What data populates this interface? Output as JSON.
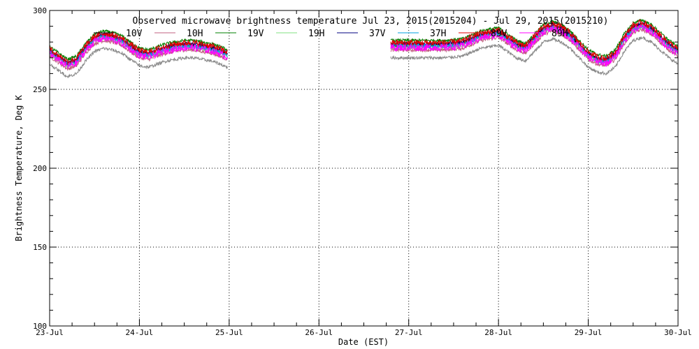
{
  "chart_data": {
    "type": "line",
    "title": "Observed microwave brightness temperature Jul 23, 2015(2015204) - Jul 29, 2015(2015210)",
    "xlabel": "Date (EST)",
    "ylabel": "Brightness Temperature, Deg K",
    "xlim": [
      0,
      7
    ],
    "ylim": [
      100,
      300
    ],
    "x_ticks": [
      {
        "value": 0,
        "label": "23-Jul"
      },
      {
        "value": 1,
        "label": "24-Jul"
      },
      {
        "value": 2,
        "label": "25-Jul"
      },
      {
        "value": 3,
        "label": "26-Jul"
      },
      {
        "value": 4,
        "label": "27-Jul"
      },
      {
        "value": 5,
        "label": "28-Jul"
      },
      {
        "value": 6,
        "label": "29-Jul"
      },
      {
        "value": 7,
        "label": "30-Jul"
      }
    ],
    "y_ticks": [
      {
        "value": 100,
        "label": "100"
      },
      {
        "value": 150,
        "label": "150"
      },
      {
        "value": 200,
        "label": "200"
      },
      {
        "value": 250,
        "label": "250"
      },
      {
        "value": 300,
        "label": "300"
      }
    ],
    "grid": "dotted",
    "legend_position": "top",
    "base_profile": {
      "segment1": {
        "x": [
          0,
          0.1,
          0.2,
          0.3,
          0.4,
          0.5,
          0.6,
          0.7,
          0.8,
          0.9,
          1.0,
          1.1,
          1.2,
          1.3,
          1.4,
          1.5,
          1.6,
          1.7,
          1.8,
          1.9,
          1.98
        ],
        "y": [
          274,
          270,
          266,
          268,
          276,
          282,
          284,
          283,
          281,
          277,
          273,
          272,
          274,
          276,
          277,
          278,
          278,
          277,
          276,
          274,
          272
        ]
      },
      "segment2": {
        "x": [
          3.8,
          4.0,
          4.2,
          4.4,
          4.6,
          4.8,
          5.0,
          5.1,
          5.2,
          5.3,
          5.4,
          5.5,
          5.6,
          5.7,
          5.8,
          5.9,
          6.0,
          6.1,
          6.2,
          6.3,
          6.4,
          6.5,
          6.6,
          6.7,
          6.8,
          6.9,
          7.0
        ],
        "y": [
          278,
          278,
          278,
          278,
          279,
          284,
          286,
          282,
          278,
          276,
          282,
          288,
          290,
          288,
          284,
          278,
          272,
          269,
          268,
          272,
          282,
          289,
          291,
          288,
          283,
          278,
          274
        ]
      }
    },
    "series": [
      {
        "name": "10V",
        "color": "#000000",
        "offset": 0,
        "noise": 1.2
      },
      {
        "name": "10H",
        "color": "#c06080",
        "offset": -3,
        "noise": 1.2
      },
      {
        "name": "19V",
        "color": "#008000",
        "offset": 3,
        "noise": 1.0
      },
      {
        "name": "19H",
        "color": "#80e080",
        "offset": -1,
        "noise": 1.4
      },
      {
        "name": "37V",
        "color": "#000080",
        "offset": 1,
        "noise": 1.0
      },
      {
        "name": "37H",
        "color": "#00a0e0",
        "offset": -0.5,
        "noise": 1.4
      },
      {
        "name": "89V",
        "color": "#e00000",
        "offset": 1.5,
        "noise": 2.0
      },
      {
        "name": "89H",
        "color": "#ff00ff",
        "offset": -1.5,
        "noise": 2.2
      },
      {
        "name": "",
        "color": "#888888",
        "offset": -8,
        "noise": 1.0
      }
    ]
  }
}
